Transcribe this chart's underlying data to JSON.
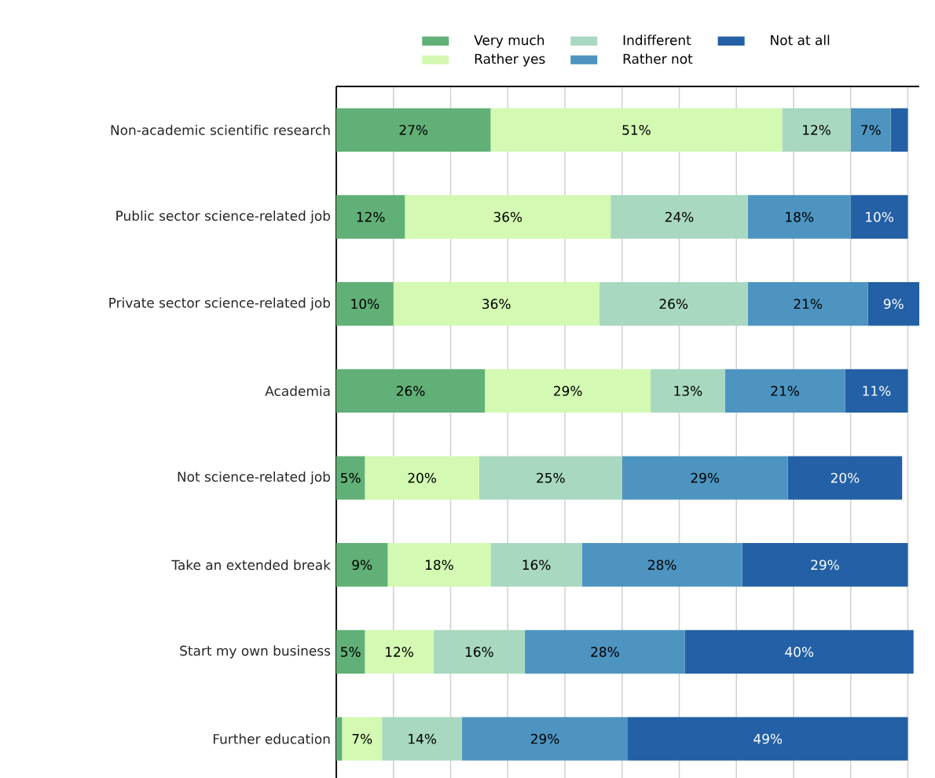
{
  "chart_data": {
    "type": "bar",
    "orientation": "horizontal",
    "stacked": true,
    "categories": [
      "Non-academic scientific research",
      "Public sector science-related job",
      "Private sector science-related job",
      "Academia",
      "Not science-related job",
      "Take an extended break",
      "Start my own business",
      "Further education"
    ],
    "series": [
      {
        "name": "Very much",
        "color": "#61b077",
        "values": [
          27,
          12,
          10,
          26,
          5,
          9,
          5,
          1
        ],
        "value_labels": [
          "27%",
          "12%",
          "10%",
          "26%",
          "5%",
          "9%",
          "5%",
          null
        ]
      },
      {
        "name": "Rather yes",
        "color": "#d3f9b2",
        "values": [
          51,
          36,
          36,
          29,
          20,
          18,
          12,
          7
        ],
        "value_labels": [
          "51%",
          "36%",
          "36%",
          "29%",
          "20%",
          "18%",
          "12%",
          "7%"
        ]
      },
      {
        "name": "Indifferent",
        "color": "#a8d8bf",
        "values": [
          12,
          24,
          26,
          13,
          25,
          16,
          16,
          14
        ],
        "value_labels": [
          "12%",
          "24%",
          "26%",
          "13%",
          "25%",
          "16%",
          "16%",
          "14%"
        ]
      },
      {
        "name": "Rather not",
        "color": "#4d94c1",
        "values": [
          7,
          18,
          21,
          21,
          29,
          28,
          28,
          29
        ],
        "value_labels": [
          "7%",
          "18%",
          "21%",
          "21%",
          "29%",
          "28%",
          "28%",
          "29%"
        ]
      },
      {
        "name": "Not at all",
        "color": "#2360a5",
        "values": [
          3,
          10,
          9,
          11,
          20,
          29,
          40,
          49
        ],
        "value_labels": [
          null,
          "10%",
          "9%",
          "11%",
          "20%",
          "29%",
          "40%",
          "49%"
        ]
      }
    ],
    "grid": "x",
    "legend": "top",
    "tick_labels": "y"
  }
}
